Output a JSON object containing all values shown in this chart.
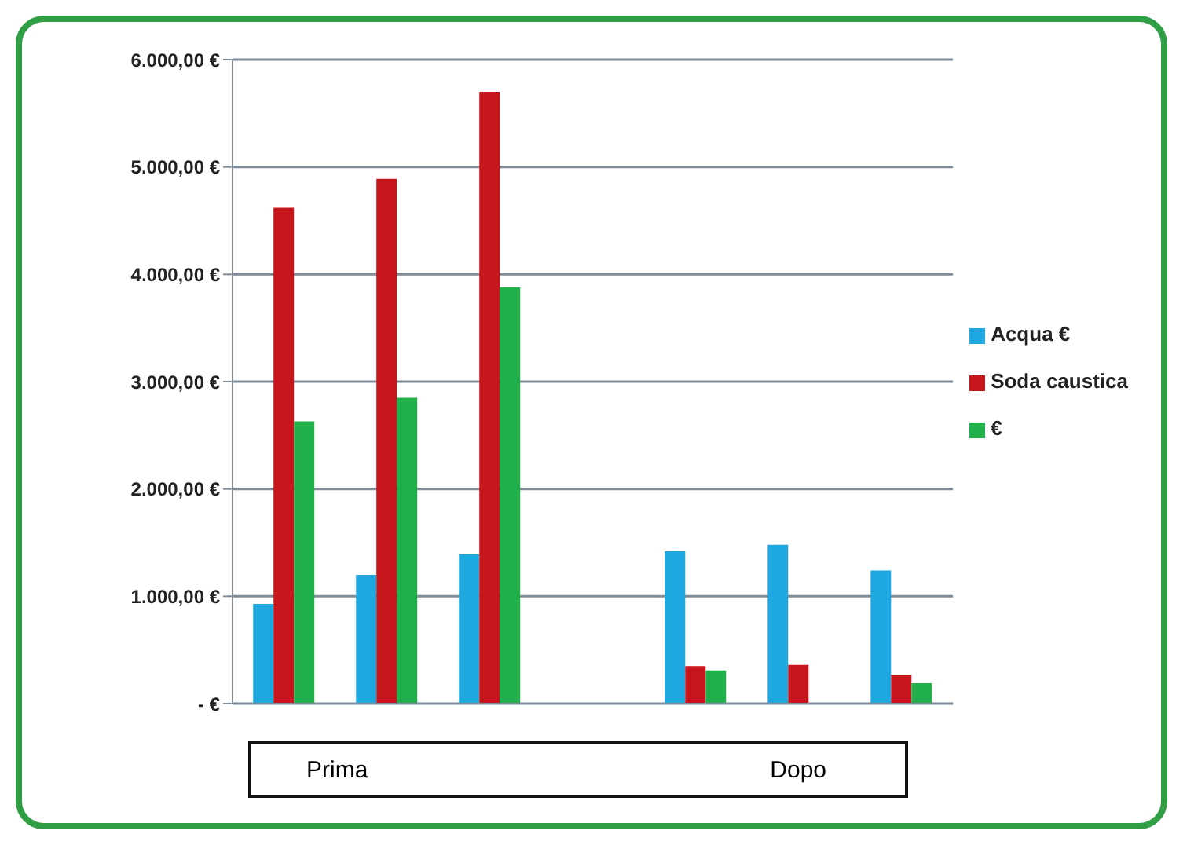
{
  "chart_data": {
    "type": "bar",
    "categories": [
      null,
      null,
      null,
      null,
      null,
      null,
      null
    ],
    "series": [
      {
        "name": "Acqua €",
        "color": "#1fa8e0",
        "values": [
          930,
          1200,
          1390,
          null,
          1420,
          1480,
          1240
        ]
      },
      {
        "name": "Soda caustica",
        "color": "#c8161d",
        "values": [
          4620,
          4890,
          5700,
          null,
          350,
          360,
          270
        ]
      },
      {
        "name": "€",
        "color": "#22b04b",
        "values": [
          2630,
          2850,
          3880,
          null,
          310,
          null,
          190
        ]
      }
    ],
    "ylim": [
      0,
      6000
    ],
    "yticks": [
      {
        "value": 0,
        "label": "- €"
      },
      {
        "value": 1000,
        "label": "1.000,00 €"
      },
      {
        "value": 2000,
        "label": "2.000,00 €"
      },
      {
        "value": 3000,
        "label": "3.000,00 €"
      },
      {
        "value": 4000,
        "label": "4.000,00 €"
      },
      {
        "value": 5000,
        "label": "5.000,00 €"
      },
      {
        "value": 6000,
        "label": "6.000,00 €"
      }
    ],
    "grid": "y",
    "legend": "right",
    "annotations": [
      "Prima",
      "Dopo"
    ]
  }
}
